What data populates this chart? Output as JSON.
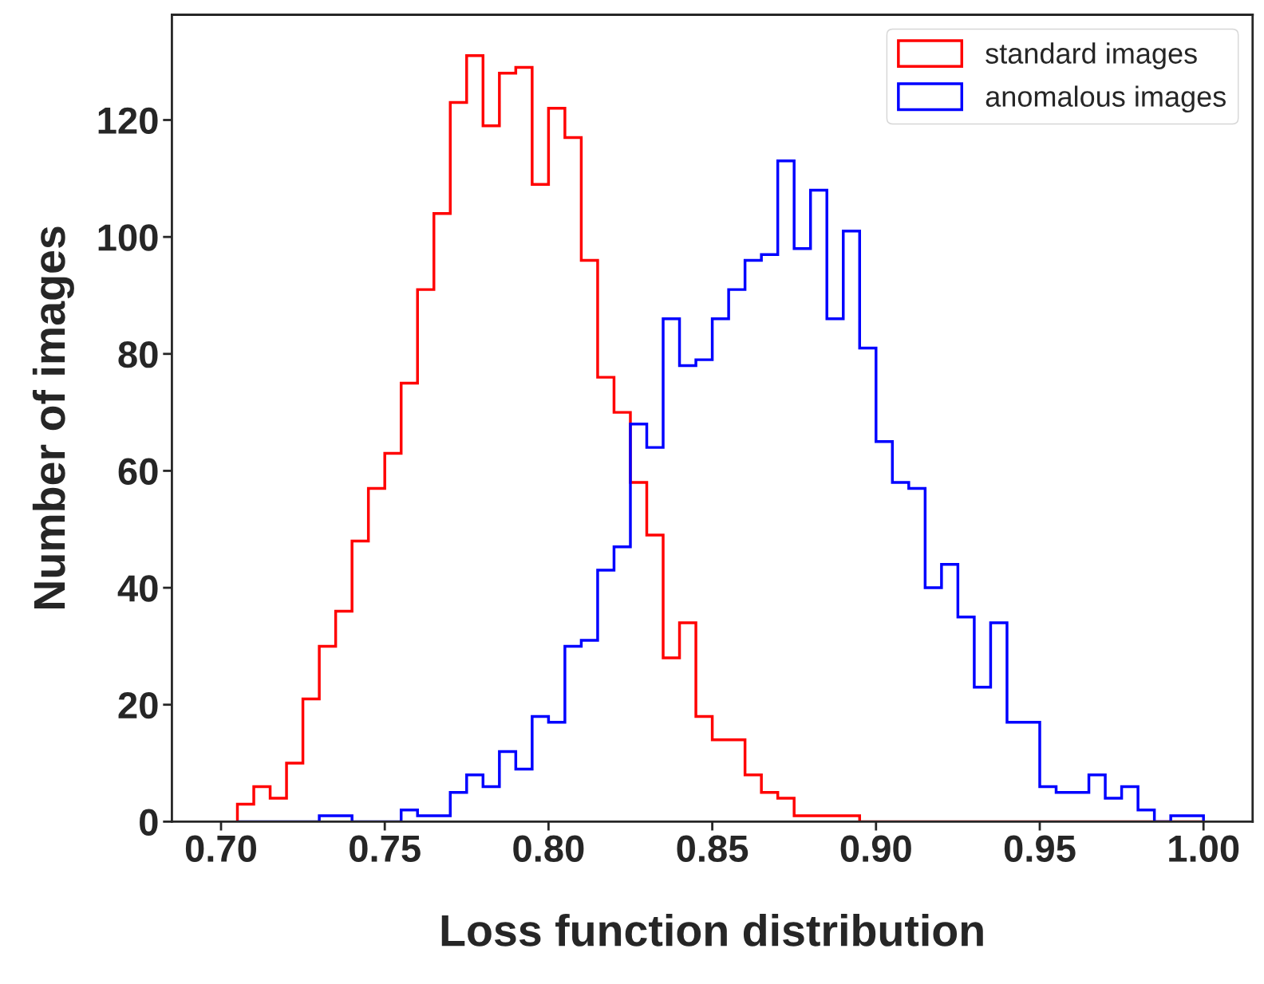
{
  "chart_data": {
    "type": "histogram",
    "xlabel": "Loss function distribution",
    "ylabel": "Number of images",
    "bins": [
      0.705,
      0.71,
      0.715,
      0.72,
      0.725,
      0.73,
      0.735,
      0.74,
      0.745,
      0.75,
      0.755,
      0.76,
      0.765,
      0.77,
      0.775,
      0.78,
      0.785,
      0.79,
      0.795,
      0.8,
      0.805,
      0.81,
      0.815,
      0.82,
      0.825,
      0.83,
      0.835,
      0.84,
      0.845,
      0.85,
      0.855,
      0.86,
      0.865,
      0.87,
      0.875,
      0.88,
      0.885,
      0.89,
      0.895,
      0.9,
      0.905,
      0.91,
      0.915,
      0.92,
      0.925,
      0.93,
      0.935,
      0.94,
      0.945,
      0.95,
      0.955,
      0.96,
      0.965,
      0.97,
      0.975,
      0.98,
      0.985,
      0.99,
      0.995,
      1.0
    ],
    "series": [
      {
        "name": "standard images",
        "color": "#ff0000",
        "values": [
          3,
          6,
          4,
          10,
          21,
          30,
          36,
          48,
          57,
          63,
          75,
          91,
          104,
          123,
          131,
          119,
          128,
          129,
          109,
          122,
          117,
          96,
          76,
          70,
          58,
          49,
          28,
          34,
          18,
          14,
          14,
          8,
          5,
          4,
          1,
          1,
          1,
          1,
          0,
          0,
          0,
          0,
          0,
          0,
          0,
          0,
          0,
          0,
          0,
          0,
          0,
          0,
          0,
          0,
          0,
          0,
          0,
          0,
          0
        ]
      },
      {
        "name": "anomalous images",
        "color": "#0000ff",
        "values": [
          0,
          0,
          0,
          0,
          0,
          1,
          1,
          0,
          0,
          0,
          2,
          1,
          1,
          5,
          8,
          6,
          12,
          9,
          18,
          17,
          30,
          31,
          43,
          47,
          68,
          64,
          86,
          78,
          79,
          86,
          91,
          96,
          97,
          113,
          98,
          108,
          86,
          101,
          81,
          65,
          58,
          57,
          40,
          44,
          35,
          23,
          34,
          17,
          17,
          6,
          5,
          5,
          8,
          4,
          6,
          2,
          0,
          1,
          1
        ]
      }
    ],
    "xlim": [
      0.685,
      1.015
    ],
    "ylim": [
      0,
      138
    ],
    "xticks": [
      {
        "value": 0.7,
        "label": "0.70"
      },
      {
        "value": 0.75,
        "label": "0.75"
      },
      {
        "value": 0.8,
        "label": "0.80"
      },
      {
        "value": 0.85,
        "label": "0.85"
      },
      {
        "value": 0.9,
        "label": "0.90"
      },
      {
        "value": 0.95,
        "label": "0.95"
      },
      {
        "value": 1.0,
        "label": "1.00"
      }
    ],
    "yticks": [
      0,
      20,
      40,
      60,
      80,
      100,
      120
    ],
    "legend": "top right",
    "grid": false
  }
}
